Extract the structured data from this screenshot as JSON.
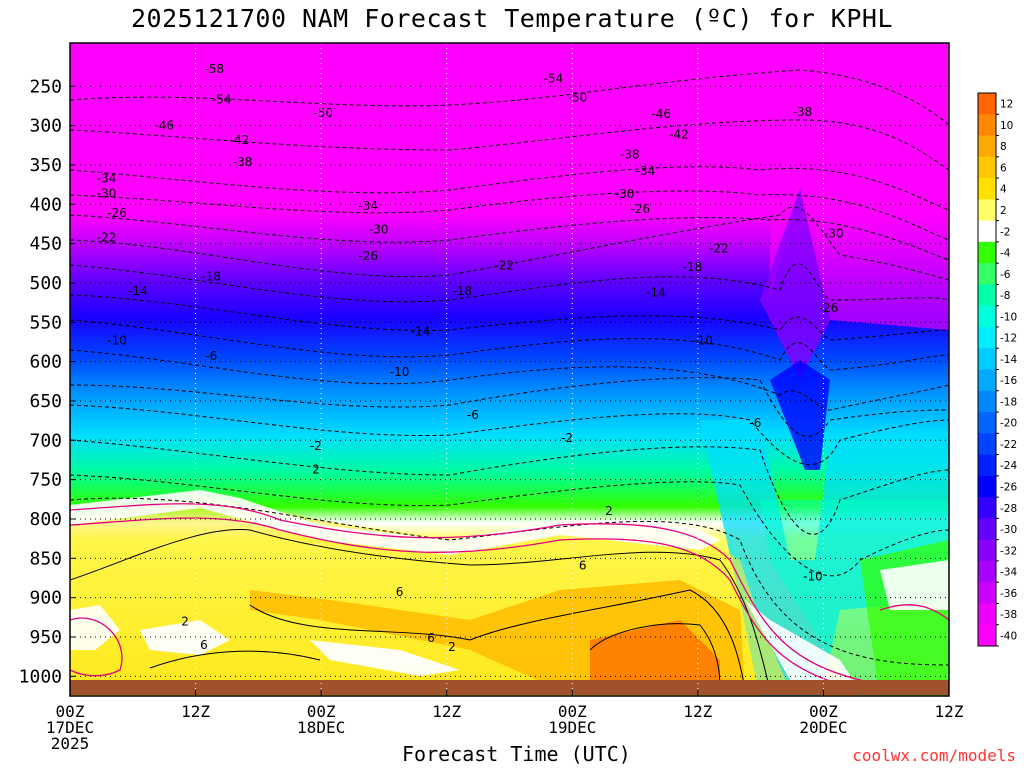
{
  "chart_data": {
    "type": "heatmap",
    "title": "2025121700 NAM Forecast Temperature (ºC) for KPHL",
    "xlabel": "Forecast Time (UTC)",
    "ylabel": "",
    "credit": "coolwx.com/models",
    "x_ticks": [
      {
        "line1": "00Z",
        "line2": "17DEC",
        "line3": "2025"
      },
      {
        "line1": "12Z",
        "line2": "",
        "line3": ""
      },
      {
        "line1": "00Z",
        "line2": "18DEC",
        "line3": ""
      },
      {
        "line1": "12Z",
        "line2": "",
        "line3": ""
      },
      {
        "line1": "00Z",
        "line2": "19DEC",
        "line3": ""
      },
      {
        "line1": "12Z",
        "line2": "",
        "line3": ""
      },
      {
        "line1": "00Z",
        "line2": "20DEC",
        "line3": ""
      },
      {
        "line1": "12Z",
        "line2": "",
        "line3": ""
      }
    ],
    "x_hours": [
      0,
      12,
      24,
      36,
      48,
      60,
      72,
      84
    ],
    "xlim_hours": [
      0,
      84
    ],
    "y_ticks": [
      250,
      300,
      350,
      400,
      450,
      500,
      550,
      600,
      650,
      700,
      750,
      800,
      850,
      900,
      950,
      1000
    ],
    "ylim_hPa": [
      1025,
      195
    ],
    "y_axis_inverted": true,
    "grid": true,
    "colorbar_levels": [
      12,
      10,
      8,
      6,
      4,
      2,
      -2,
      -4,
      -6,
      -8,
      -10,
      -12,
      -14,
      -16,
      -18,
      -20,
      -22,
      -24,
      -26,
      -28,
      -30,
      -32,
      -34,
      -36,
      -38,
      -40
    ],
    "colorbar_labels": [
      "12",
      "10",
      "8",
      "6",
      "4",
      "2",
      "-2",
      "-4",
      "-6",
      "-8",
      "-10",
      "-12",
      "-14",
      "-16",
      "-18",
      "-20",
      "-22",
      "-24",
      "-26",
      "-28",
      "-30",
      "-32",
      "-34",
      "-36",
      "-38",
      "-40"
    ],
    "colorbar_colors": [
      "#ff6600",
      "#ff8800",
      "#ffaa00",
      "#ffc800",
      "#ffe100",
      "#ffff66",
      "#ffffff",
      "#33ff00",
      "#33ff66",
      "#00ffaa",
      "#00ffdd",
      "#00eeff",
      "#00ccff",
      "#00aaff",
      "#0088ff",
      "#0066ff",
      "#0044ff",
      "#0022ff",
      "#0000ff",
      "#3300ff",
      "#6600ff",
      "#8800ff",
      "#aa00ff",
      "#cc00ff",
      "#ee00ff",
      "#ff00ff"
    ],
    "contour_labels": [
      {
        "text": "-58",
        "h": 13.8,
        "p": 228
      },
      {
        "text": "-54",
        "h": 14.5,
        "p": 267
      },
      {
        "text": "-50",
        "h": 24.2,
        "p": 284
      },
      {
        "text": "-54",
        "h": 46.2,
        "p": 240
      },
      {
        "text": "-50",
        "h": 48.5,
        "p": 264
      },
      {
        "text": "-46",
        "h": 9.0,
        "p": 300
      },
      {
        "text": "-46",
        "h": 56.5,
        "p": 285
      },
      {
        "text": "-42",
        "h": 16.2,
        "p": 318
      },
      {
        "text": "-42",
        "h": 58.2,
        "p": 311
      },
      {
        "text": "-38",
        "h": 16.5,
        "p": 346
      },
      {
        "text": "-38",
        "h": 53.5,
        "p": 337
      },
      {
        "text": "-38",
        "h": 70.0,
        "p": 283
      },
      {
        "text": "-34",
        "h": 3.5,
        "p": 367
      },
      {
        "text": "-34",
        "h": 28.5,
        "p": 402
      },
      {
        "text": "-34",
        "h": 55.0,
        "p": 358
      },
      {
        "text": "-30",
        "h": 3.5,
        "p": 386
      },
      {
        "text": "-30",
        "h": 29.5,
        "p": 432
      },
      {
        "text": "-30",
        "h": 53.0,
        "p": 387
      },
      {
        "text": "-30",
        "h": 73.0,
        "p": 437
      },
      {
        "text": "-26",
        "h": 4.5,
        "p": 411
      },
      {
        "text": "-26",
        "h": 28.5,
        "p": 466
      },
      {
        "text": "-26",
        "h": 54.5,
        "p": 406
      },
      {
        "text": "-26",
        "h": 72.5,
        "p": 532
      },
      {
        "text": "-22",
        "h": 3.5,
        "p": 442
      },
      {
        "text": "-22",
        "h": 41.5,
        "p": 478
      },
      {
        "text": "-22",
        "h": 62.0,
        "p": 456
      },
      {
        "text": "-18",
        "h": 13.5,
        "p": 492
      },
      {
        "text": "-18",
        "h": 37.5,
        "p": 510
      },
      {
        "text": "-18",
        "h": 59.5,
        "p": 480
      },
      {
        "text": "-14",
        "h": 6.5,
        "p": 510
      },
      {
        "text": "-14",
        "h": 33.5,
        "p": 562
      },
      {
        "text": "-14",
        "h": 56.0,
        "p": 512
      },
      {
        "text": "-10",
        "h": 4.5,
        "p": 573
      },
      {
        "text": "-10",
        "h": 31.5,
        "p": 613
      },
      {
        "text": "-10",
        "h": 60.5,
        "p": 573
      },
      {
        "text": "-10",
        "h": 71.0,
        "p": 873
      },
      {
        "text": "-6",
        "h": 13.5,
        "p": 593
      },
      {
        "text": "-6",
        "h": 38.5,
        "p": 668
      },
      {
        "text": "-6",
        "h": 65.5,
        "p": 678
      },
      {
        "text": "-2",
        "h": 23.5,
        "p": 707
      },
      {
        "text": "-2",
        "h": 47.5,
        "p": 697
      },
      {
        "text": "2",
        "h": 23.5,
        "p": 737
      },
      {
        "text": "2",
        "h": 51.5,
        "p": 790
      },
      {
        "text": "2",
        "h": 11.0,
        "p": 930
      },
      {
        "text": "2",
        "h": 36.5,
        "p": 963
      },
      {
        "text": "6",
        "h": 49.0,
        "p": 859
      },
      {
        "text": "6",
        "h": 31.5,
        "p": 893
      },
      {
        "text": "6",
        "h": 34.5,
        "p": 951
      },
      {
        "text": "6",
        "h": 12.8,
        "p": 960
      }
    ]
  }
}
